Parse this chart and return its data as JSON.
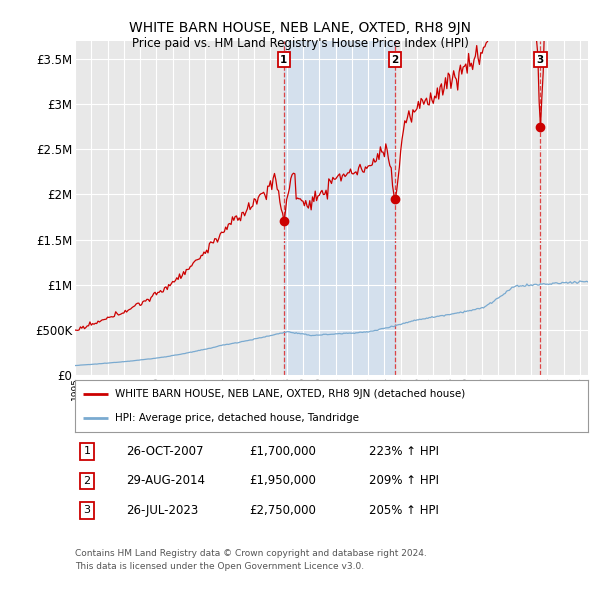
{
  "title": "WHITE BARN HOUSE, NEB LANE, OXTED, RH8 9JN",
  "subtitle": "Price paid vs. HM Land Registry's House Price Index (HPI)",
  "ylabel_ticks": [
    "£0",
    "£500K",
    "£1M",
    "£1.5M",
    "£2M",
    "£2.5M",
    "£3M",
    "£3.5M"
  ],
  "ylabel_values": [
    0,
    500000,
    1000000,
    1500000,
    2000000,
    2500000,
    3000000,
    3500000
  ],
  "ylim": [
    0,
    3700000
  ],
  "xlim_start": 1995.0,
  "xlim_end": 2026.5,
  "sale_color": "#cc0000",
  "hpi_color": "#7aaad0",
  "sale_label": "WHITE BARN HOUSE, NEB LANE, OXTED, RH8 9JN (detached house)",
  "hpi_label": "HPI: Average price, detached house, Tandridge",
  "transactions": [
    {
      "num": 1,
      "date": "26-OCT-2007",
      "x": 2007.82,
      "price": 1700000,
      "pct": "223%",
      "dir": "↑"
    },
    {
      "num": 2,
      "date": "29-AUG-2014",
      "x": 2014.66,
      "price": 1950000,
      "pct": "209%",
      "dir": "↑"
    },
    {
      "num": 3,
      "date": "26-JUL-2023",
      "x": 2023.57,
      "price": 2750000,
      "pct": "205%",
      "dir": "↑"
    }
  ],
  "footnote1": "Contains HM Land Registry data © Crown copyright and database right 2024.",
  "footnote2": "This data is licensed under the Open Government Licence v3.0.",
  "background_color": "#ffffff",
  "plot_bg_color": "#e8e8e8",
  "grid_color": "#ffffff",
  "vline_color": "#dd3333",
  "shading_color": "#ccddf0"
}
